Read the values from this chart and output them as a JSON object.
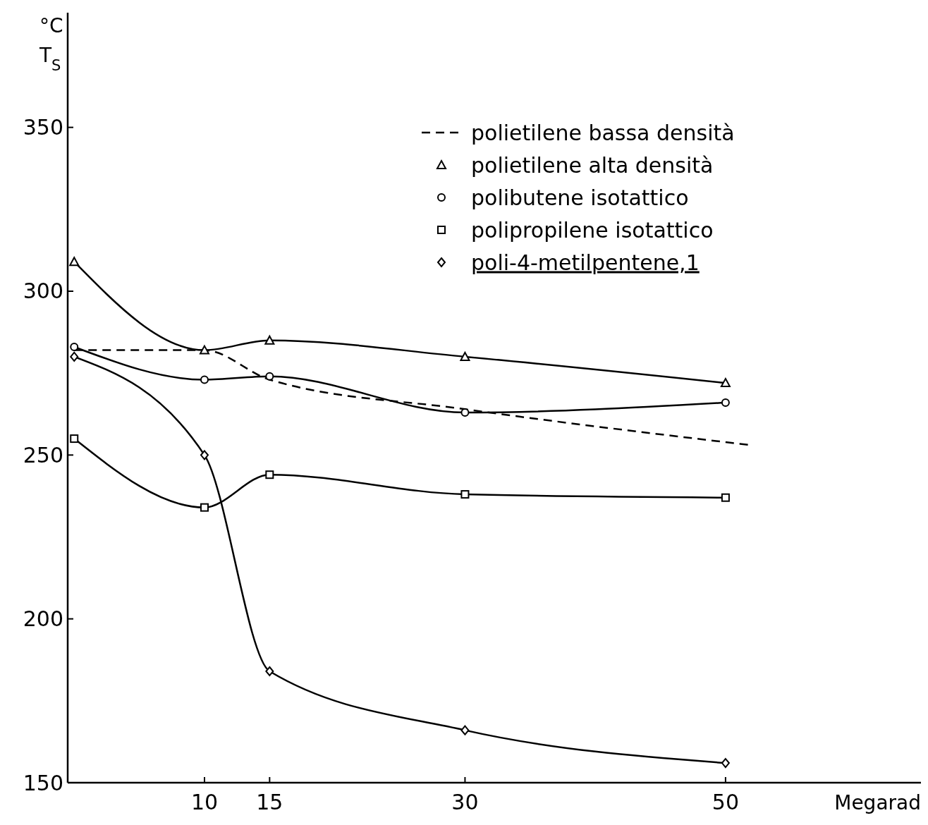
{
  "chart_data": {
    "type": "line",
    "xlabel": "Megarad",
    "ylabel": "°C T$_{S}$",
    "xlim": [
      -0.5,
      65
    ],
    "ylim": [
      150,
      385
    ],
    "xticks": [
      10,
      15,
      30,
      50
    ],
    "yticks": [
      150,
      200,
      250,
      300,
      350
    ],
    "legend": "top right",
    "grid": false,
    "series": [
      {
        "name": "polietilene bassa densità",
        "color": "#000000",
        "marker": "none",
        "line_style": "dashed",
        "x": [
          0,
          10,
          15,
          30,
          52
        ],
        "values": [
          282,
          282,
          273,
          264,
          253
        ]
      },
      {
        "name": "polietilene alta densità",
        "color": "#000000",
        "marker": "triangle",
        "line_style": "solid",
        "x": [
          0,
          10,
          15,
          30,
          50
        ],
        "values": [
          309,
          282,
          285,
          280,
          272
        ]
      },
      {
        "name": "polibutene isotattico",
        "color": "#000000",
        "marker": "circle",
        "line_style": "solid",
        "x": [
          0,
          10,
          15,
          30,
          50
        ],
        "values": [
          283,
          273,
          274,
          263,
          266
        ]
      },
      {
        "name": "polipropilene isotattico",
        "color": "#000000",
        "marker": "square",
        "line_style": "solid",
        "x": [
          0,
          10,
          15,
          30,
          50
        ],
        "values": [
          255,
          234,
          244,
          238,
          237
        ]
      },
      {
        "name": "poli-4-metilpentene,1",
        "color": "#000000",
        "marker": "diamond",
        "line_style": "solid",
        "x": [
          0,
          10,
          15,
          30,
          50
        ],
        "values": [
          280,
          250,
          184,
          166,
          156
        ]
      }
    ]
  }
}
